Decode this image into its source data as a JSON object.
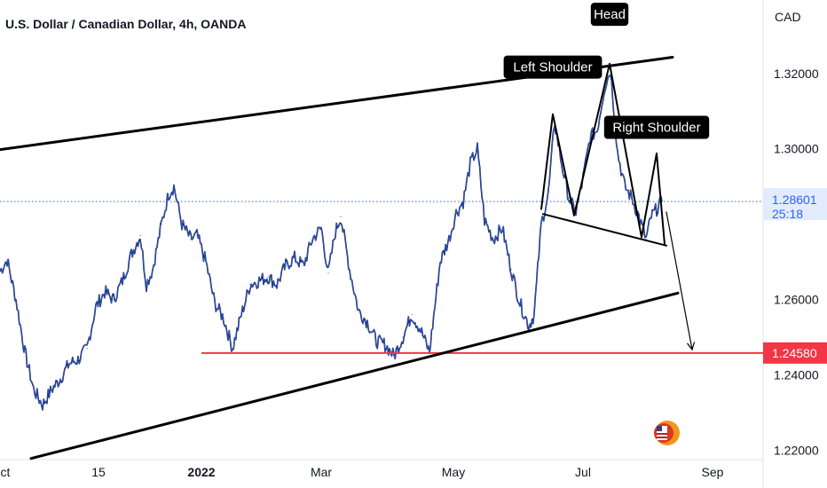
{
  "chart_data": {
    "type": "line",
    "title": "U.S. Dollar / Canadian Dollar, 4h, OANDA",
    "currency": "CAD",
    "y_ticks": [
      "1.32000",
      "1.30000",
      "1.26000",
      "1.24000",
      "1.22000"
    ],
    "y_tick_values": [
      1.32,
      1.3,
      1.26,
      1.24,
      1.22
    ],
    "ylim": [
      1.2175,
      1.3395
    ],
    "x_ticks": [
      {
        "label": "Oct",
        "bold": false
      },
      {
        "label": "15",
        "bold": false
      },
      {
        "label": "2022",
        "bold": true
      },
      {
        "label": "Mar",
        "bold": false
      },
      {
        "label": "May",
        "bold": false
      },
      {
        "label": "Jul",
        "bold": false
      },
      {
        "label": "Sep",
        "bold": false
      }
    ],
    "x_tick_t": [
      0.5,
      111,
      227,
      362,
      511,
      657,
      803
    ],
    "xlim": [
      0,
      860
    ],
    "price": {
      "series_color": "#2962ff",
      "points": [
        [
          0,
          1.2675
        ],
        [
          8,
          1.2705
        ],
        [
          18,
          1.26
        ],
        [
          28,
          1.246
        ],
        [
          38,
          1.236
        ],
        [
          48,
          1.232
        ],
        [
          58,
          1.236
        ],
        [
          68,
          1.239
        ],
        [
          78,
          1.243
        ],
        [
          88,
          1.244
        ],
        [
          98,
          1.247
        ],
        [
          108,
          1.258
        ],
        [
          118,
          1.262
        ],
        [
          128,
          1.26
        ],
        [
          138,
          1.265
        ],
        [
          148,
          1.272
        ],
        [
          158,
          1.277
        ],
        [
          165,
          1.264
        ],
        [
          172,
          1.268
        ],
        [
          182,
          1.28
        ],
        [
          190,
          1.288
        ],
        [
          196,
          1.29
        ],
        [
          205,
          1.28
        ],
        [
          215,
          1.276
        ],
        [
          222,
          1.277
        ],
        [
          232,
          1.27
        ],
        [
          242,
          1.259
        ],
        [
          252,
          1.255
        ],
        [
          262,
          1.247
        ],
        [
          272,
          1.256
        ],
        [
          282,
          1.264
        ],
        [
          292,
          1.265
        ],
        [
          302,
          1.266
        ],
        [
          312,
          1.264
        ],
        [
          322,
          1.269
        ],
        [
          332,
          1.271
        ],
        [
          342,
          1.269
        ],
        [
          352,
          1.276
        ],
        [
          362,
          1.279
        ],
        [
          370,
          1.267
        ],
        [
          378,
          1.278
        ],
        [
          384,
          1.282
        ],
        [
          394,
          1.268
        ],
        [
          404,
          1.257
        ],
        [
          414,
          1.254
        ],
        [
          424,
          1.249
        ],
        [
          434,
          1.248
        ],
        [
          444,
          1.245
        ],
        [
          454,
          1.25
        ],
        [
          464,
          1.256
        ],
        [
          474,
          1.252
        ],
        [
          484,
          1.246
        ],
        [
          490,
          1.258
        ],
        [
          496,
          1.27
        ],
        [
          506,
          1.276
        ],
        [
          514,
          1.283
        ],
        [
          522,
          1.286
        ],
        [
          530,
          1.296
        ],
        [
          538,
          1.3
        ],
        [
          546,
          1.281
        ],
        [
          556,
          1.276
        ],
        [
          566,
          1.279
        ],
        [
          576,
          1.268
        ],
        [
          586,
          1.259
        ],
        [
          596,
          1.253
        ],
        [
          602,
          1.256
        ],
        [
          610,
          1.28
        ],
        [
          618,
          1.288
        ],
        [
          625,
          1.307
        ],
        [
          633,
          1.296
        ],
        [
          641,
          1.287
        ],
        [
          649,
          1.283
        ],
        [
          657,
          1.292
        ],
        [
          665,
          1.303
        ],
        [
          673,
          1.305
        ],
        [
          681,
          1.316
        ],
        [
          688,
          1.321
        ],
        [
          696,
          1.299
        ],
        [
          704,
          1.29
        ],
        [
          712,
          1.287
        ],
        [
          720,
          1.282
        ],
        [
          728,
          1.276
        ],
        [
          734,
          1.282
        ],
        [
          740,
          1.284
        ],
        [
          746,
          1.286
        ]
      ]
    },
    "reference_line": {
      "value": 1.2458,
      "color": "#f23645"
    },
    "current_price": {
      "value": "1.28601",
      "timer": "25:18",
      "level": 1.28601,
      "color": "#2962ff"
    },
    "level_badge": {
      "value": "1.24580",
      "color": "#f23645"
    },
    "annotations": [
      {
        "text": "Head",
        "anchor_t": 687,
        "anchor_y": 1.3357
      },
      {
        "text": "Left Shoulder",
        "anchor_t": 623,
        "anchor_y": 1.3217
      },
      {
        "text": "Right Shoulder",
        "anchor_t": 740,
        "anchor_y": 1.3057
      }
    ],
    "drawings": {
      "channel_upper": [
        [
          0,
          1.2998
        ],
        [
          758,
          1.3243
        ]
      ],
      "channel_lower": [
        [
          35,
          1.2178
        ],
        [
          764,
          1.2617
        ]
      ],
      "pattern_outline": [
        [
          610,
          1.284
        ],
        [
          623,
          1.3092
        ],
        [
          647,
          1.2823
        ],
        [
          687,
          1.3226
        ],
        [
          723,
          1.2765
        ],
        [
          740,
          1.2988
        ],
        [
          749,
          1.2747
        ]
      ],
      "neckline": [
        [
          612,
          1.2827
        ],
        [
          751,
          1.2743
        ]
      ],
      "projection": [
        [
          751,
          1.2832
        ],
        [
          780,
          1.2467
        ]
      ]
    }
  }
}
